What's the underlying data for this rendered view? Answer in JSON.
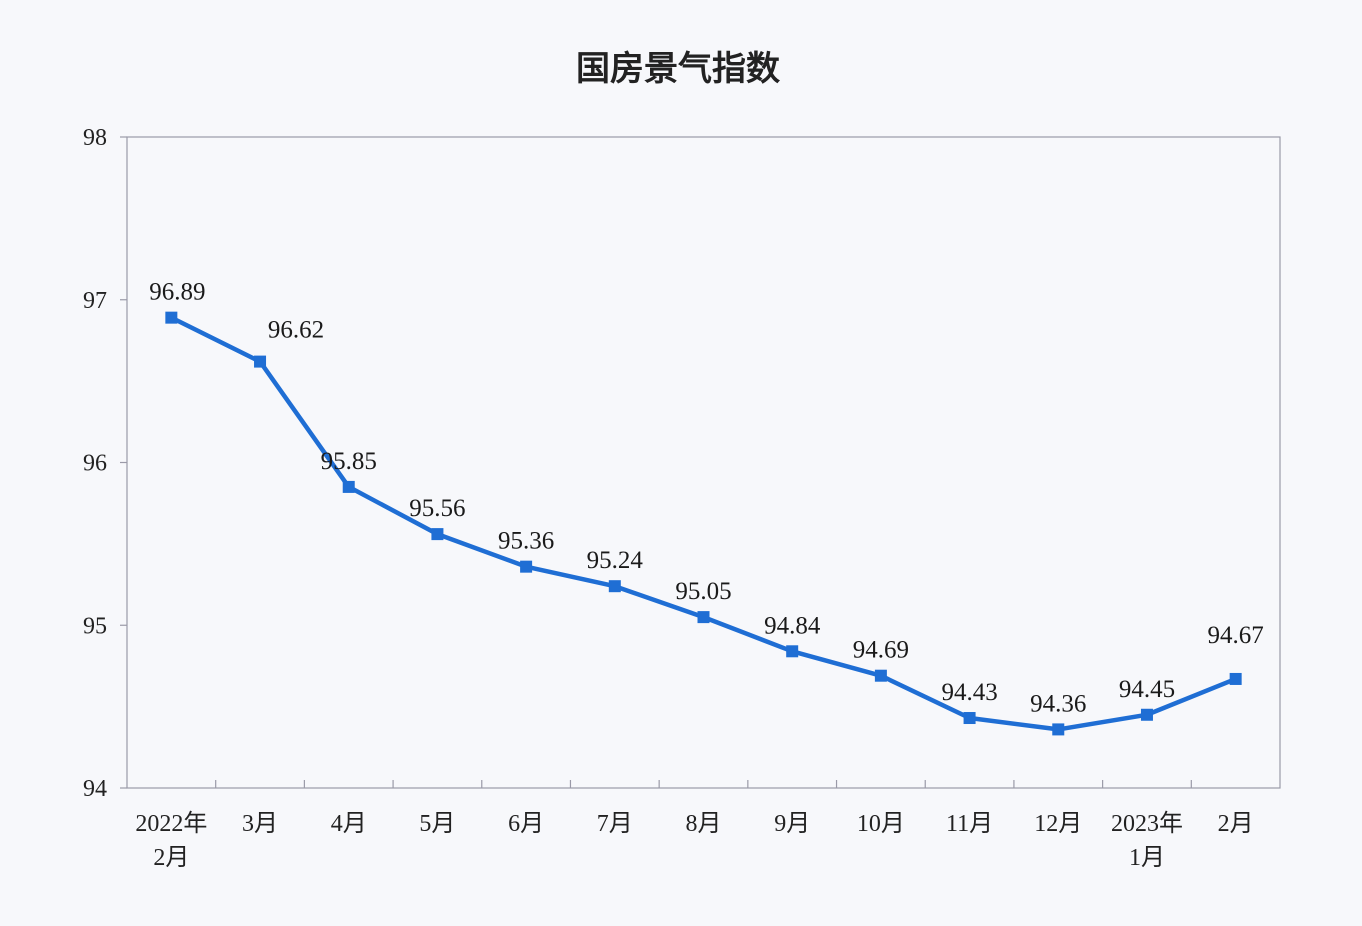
{
  "chart_data": {
    "type": "line",
    "title": "国房景气指数",
    "categories": [
      [
        "2022年",
        "2月"
      ],
      [
        "3月"
      ],
      [
        "4月"
      ],
      [
        "5月"
      ],
      [
        "6月"
      ],
      [
        "7月"
      ],
      [
        "8月"
      ],
      [
        "9月"
      ],
      [
        "10月"
      ],
      [
        "11月"
      ],
      [
        "12月"
      ],
      [
        "2023年",
        "1月"
      ],
      [
        "2月"
      ]
    ],
    "values": [
      96.89,
      96.62,
      95.85,
      95.56,
      95.36,
      95.24,
      95.05,
      94.84,
      94.69,
      94.43,
      94.36,
      94.45,
      94.67
    ],
    "data_labels": [
      "96.89",
      "96.62",
      "95.85",
      "95.56",
      "95.36",
      "95.24",
      "95.05",
      "94.84",
      "94.69",
      "94.43",
      "94.36",
      "94.45",
      "94.67"
    ],
    "ylim": [
      94,
      98
    ],
    "yticks": [
      "94",
      "95",
      "96",
      "97",
      "98"
    ],
    "xlabel": "",
    "ylabel": "",
    "grid": false,
    "marker": "square",
    "colors": {
      "line": "#1f6ed4",
      "axis": "#9a9aa8"
    }
  }
}
